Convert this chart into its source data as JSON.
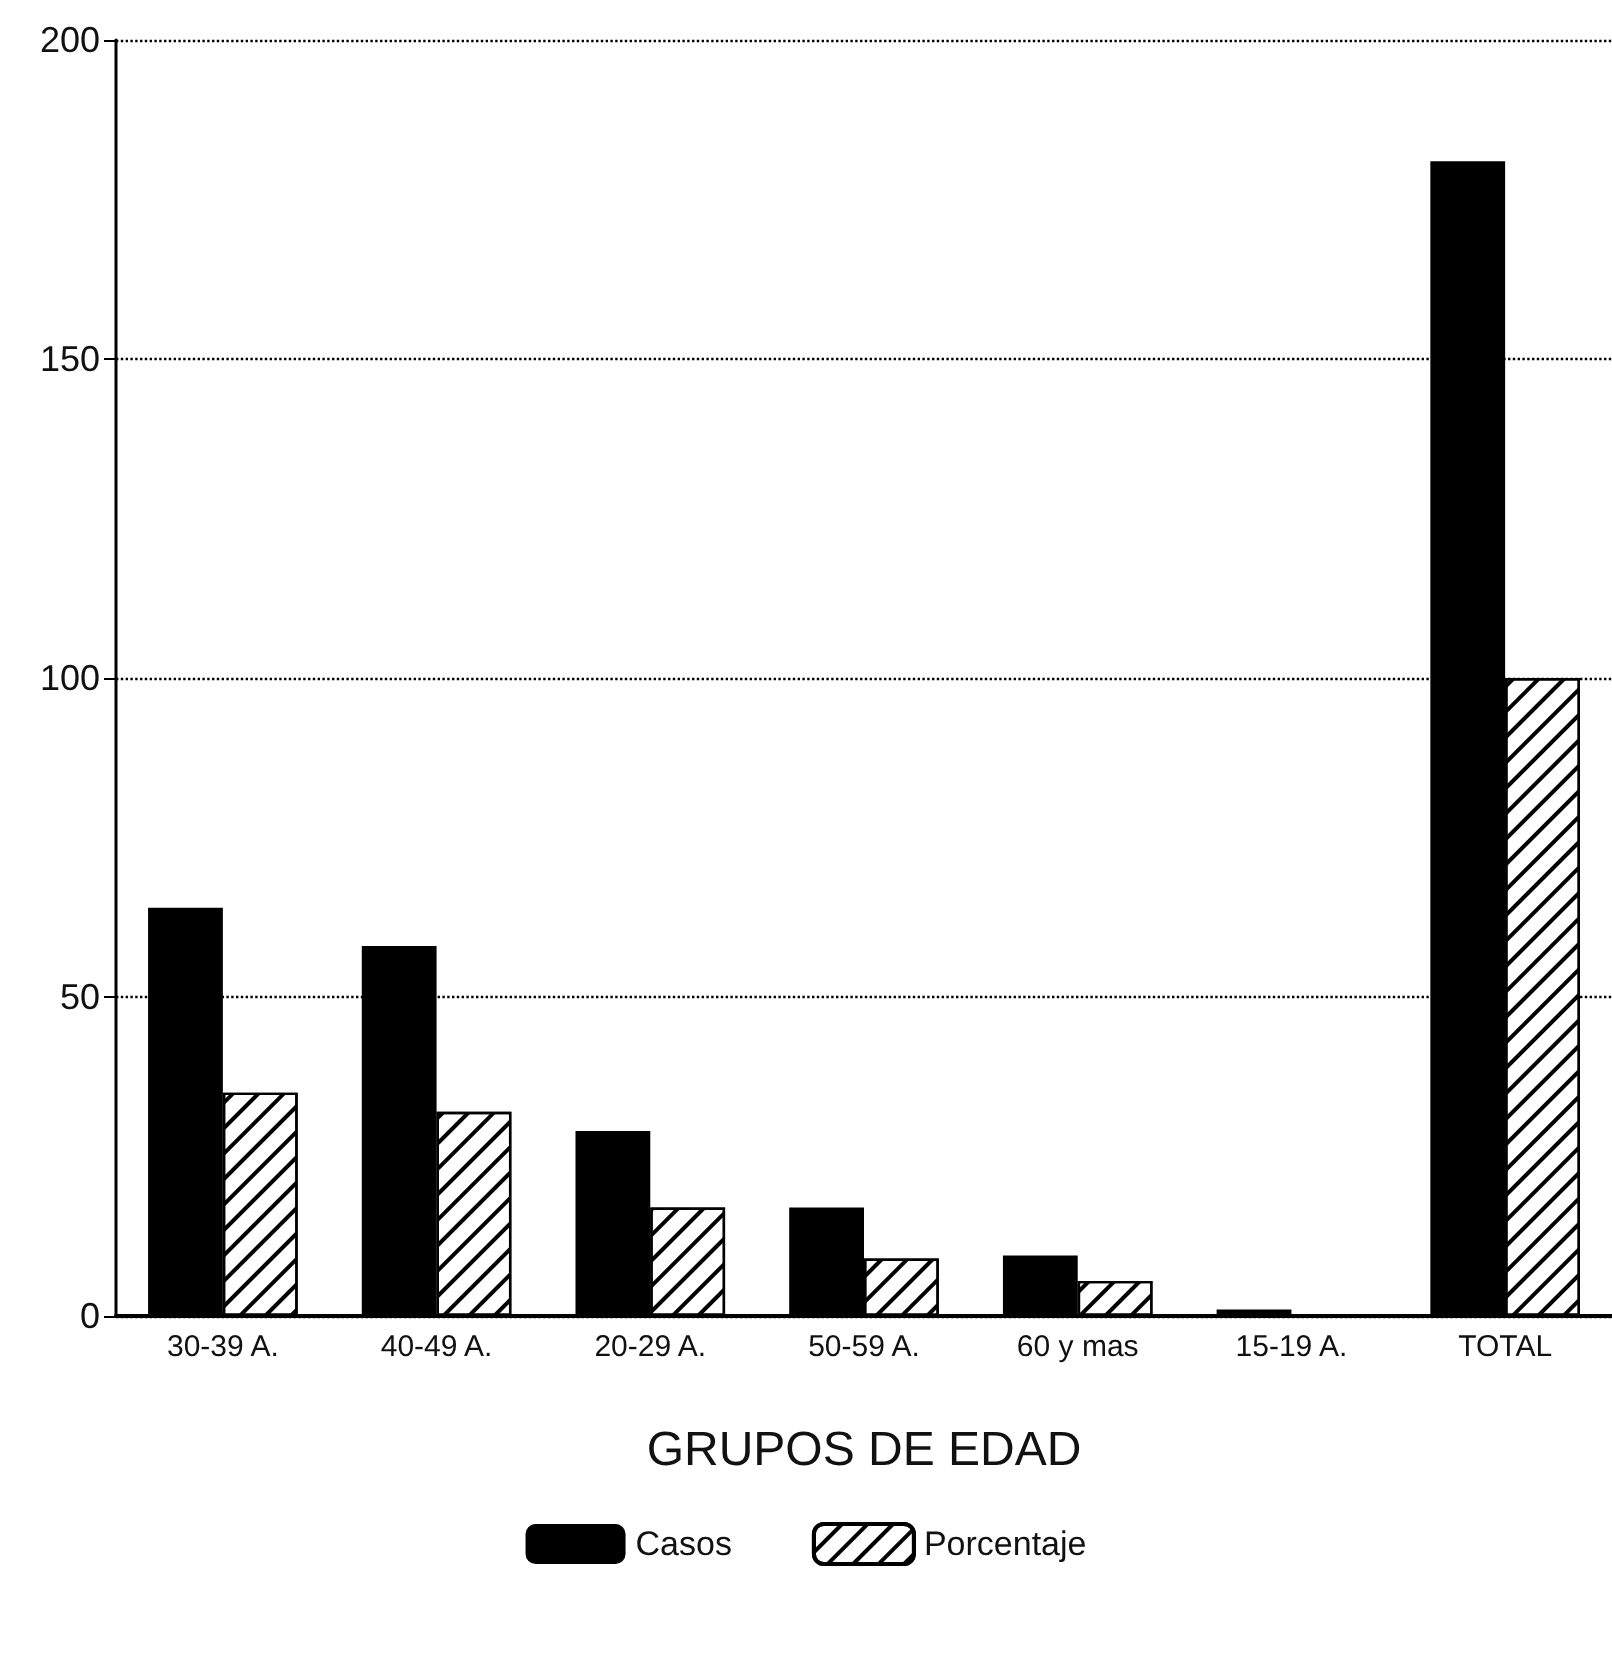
{
  "chart_data": {
    "type": "bar",
    "xlabel": "GRUPOS DE EDAD",
    "categories": [
      "30-39 A.",
      "40-49 A.",
      "20-29 A.",
      "50-59 A.",
      "60 y mas",
      "15-19 A.",
      "TOTAL"
    ],
    "series": [
      {
        "name": "Casos",
        "color": "#000000",
        "values": [
          64,
          58,
          29,
          17,
          9.5,
          1,
          181
        ]
      },
      {
        "name": "Porcentaje",
        "color": "#ffffff",
        "values": [
          35,
          32,
          17,
          9,
          5.5,
          null,
          100
        ]
      }
    ],
    "ylim": [
      0,
      200
    ],
    "yticks": [
      0,
      50,
      100,
      150,
      200
    ],
    "grid": "y",
    "legend": "bottom"
  }
}
